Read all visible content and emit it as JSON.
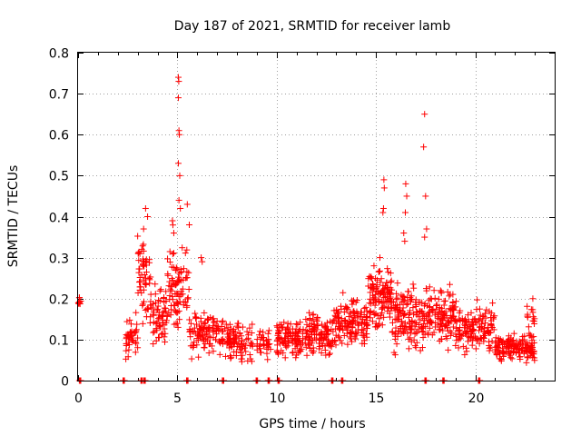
{
  "chart_data": {
    "type": "scatter",
    "title": "Day 187 of 2021, SRMTID for receiver lamb",
    "xlabel": "GPS time / hours",
    "ylabel": "SRMTID / TECUs",
    "xlim": [
      0,
      24
    ],
    "ylim": [
      0,
      0.8
    ],
    "xticks": [
      0,
      5,
      10,
      15,
      20
    ],
    "yticks": [
      0,
      0.1,
      0.2,
      0.3,
      0.4,
      0.5,
      0.6,
      0.7,
      0.8
    ],
    "grid": true,
    "marker": "+",
    "color": "#ff0000",
    "zero_markers_x": [
      0.1,
      2.3,
      3.2,
      3.35,
      5.5,
      7.3,
      9.0,
      9.6,
      10.1,
      12.8,
      13.3,
      17.5,
      18.4,
      20.2
    ],
    "clusters": [
      {
        "x_range": [
          0.0,
          0.15
        ],
        "y_range": [
          0.18,
          0.21
        ],
        "n": 8
      },
      {
        "x_range": [
          2.4,
          3.0
        ],
        "y_range": [
          0.04,
          0.19
        ],
        "n": 45
      },
      {
        "x_range": [
          3.0,
          3.6
        ],
        "y_range": [
          0.1,
          0.42
        ],
        "n": 55
      },
      {
        "x_range": [
          3.6,
          4.5
        ],
        "y_range": [
          0.05,
          0.28
        ],
        "n": 70
      },
      {
        "x_range": [
          4.5,
          5.0
        ],
        "y_range": [
          0.08,
          0.38
        ],
        "n": 45
      },
      {
        "x_range": [
          5.0,
          5.6
        ],
        "y_range": [
          0.1,
          0.35
        ],
        "n": 45
      },
      {
        "x_range": [
          5.6,
          7.4
        ],
        "y_range": [
          0.05,
          0.18
        ],
        "n": 110
      },
      {
        "x_range": [
          7.4,
          8.8
        ],
        "y_range": [
          0.03,
          0.17
        ],
        "n": 95
      },
      {
        "x_range": [
          9.0,
          9.7
        ],
        "y_range": [
          0.04,
          0.15
        ],
        "n": 35
      },
      {
        "x_range": [
          10.0,
          11.5
        ],
        "y_range": [
          0.04,
          0.16
        ],
        "n": 110
      },
      {
        "x_range": [
          11.5,
          13.0
        ],
        "y_range": [
          0.05,
          0.18
        ],
        "n": 120
      },
      {
        "x_range": [
          13.0,
          14.6
        ],
        "y_range": [
          0.06,
          0.22
        ],
        "n": 130
      },
      {
        "x_range": [
          14.6,
          15.8
        ],
        "y_range": [
          0.1,
          0.3
        ],
        "n": 120
      },
      {
        "x_range": [
          15.8,
          17.4
        ],
        "y_range": [
          0.05,
          0.27
        ],
        "n": 140
      },
      {
        "x_range": [
          17.4,
          19.0
        ],
        "y_range": [
          0.07,
          0.24
        ],
        "n": 130
      },
      {
        "x_range": [
          19.0,
          21.0
        ],
        "y_range": [
          0.05,
          0.2
        ],
        "n": 140
      },
      {
        "x_range": [
          21.0,
          23.0
        ],
        "y_range": [
          0.04,
          0.12
        ],
        "n": 150
      },
      {
        "x_range": [
          22.6,
          23.0
        ],
        "y_range": [
          0.1,
          0.2
        ],
        "n": 15
      }
    ],
    "points": [
      {
        "x": 5.05,
        "y": 0.74
      },
      {
        "x": 5.07,
        "y": 0.73
      },
      {
        "x": 5.05,
        "y": 0.69
      },
      {
        "x": 5.08,
        "y": 0.61
      },
      {
        "x": 5.1,
        "y": 0.6
      },
      {
        "x": 5.05,
        "y": 0.53
      },
      {
        "x": 5.12,
        "y": 0.5
      },
      {
        "x": 5.08,
        "y": 0.44
      },
      {
        "x": 5.15,
        "y": 0.42
      },
      {
        "x": 5.5,
        "y": 0.43
      },
      {
        "x": 5.6,
        "y": 0.38
      },
      {
        "x": 6.2,
        "y": 0.3
      },
      {
        "x": 6.25,
        "y": 0.29
      },
      {
        "x": 4.75,
        "y": 0.39
      },
      {
        "x": 4.82,
        "y": 0.36
      },
      {
        "x": 3.4,
        "y": 0.42
      },
      {
        "x": 3.5,
        "y": 0.4
      },
      {
        "x": 3.3,
        "y": 0.37
      },
      {
        "x": 17.45,
        "y": 0.65
      },
      {
        "x": 17.4,
        "y": 0.57
      },
      {
        "x": 17.5,
        "y": 0.45
      },
      {
        "x": 17.55,
        "y": 0.37
      },
      {
        "x": 17.45,
        "y": 0.35
      },
      {
        "x": 15.4,
        "y": 0.49
      },
      {
        "x": 15.42,
        "y": 0.47
      },
      {
        "x": 15.38,
        "y": 0.42
      },
      {
        "x": 15.35,
        "y": 0.41
      },
      {
        "x": 16.5,
        "y": 0.48
      },
      {
        "x": 16.55,
        "y": 0.45
      },
      {
        "x": 16.48,
        "y": 0.41
      },
      {
        "x": 16.4,
        "y": 0.36
      },
      {
        "x": 16.45,
        "y": 0.34
      },
      {
        "x": 14.9,
        "y": 0.28
      },
      {
        "x": 15.2,
        "y": 0.3
      },
      {
        "x": 22.9,
        "y": 0.2
      }
    ]
  }
}
